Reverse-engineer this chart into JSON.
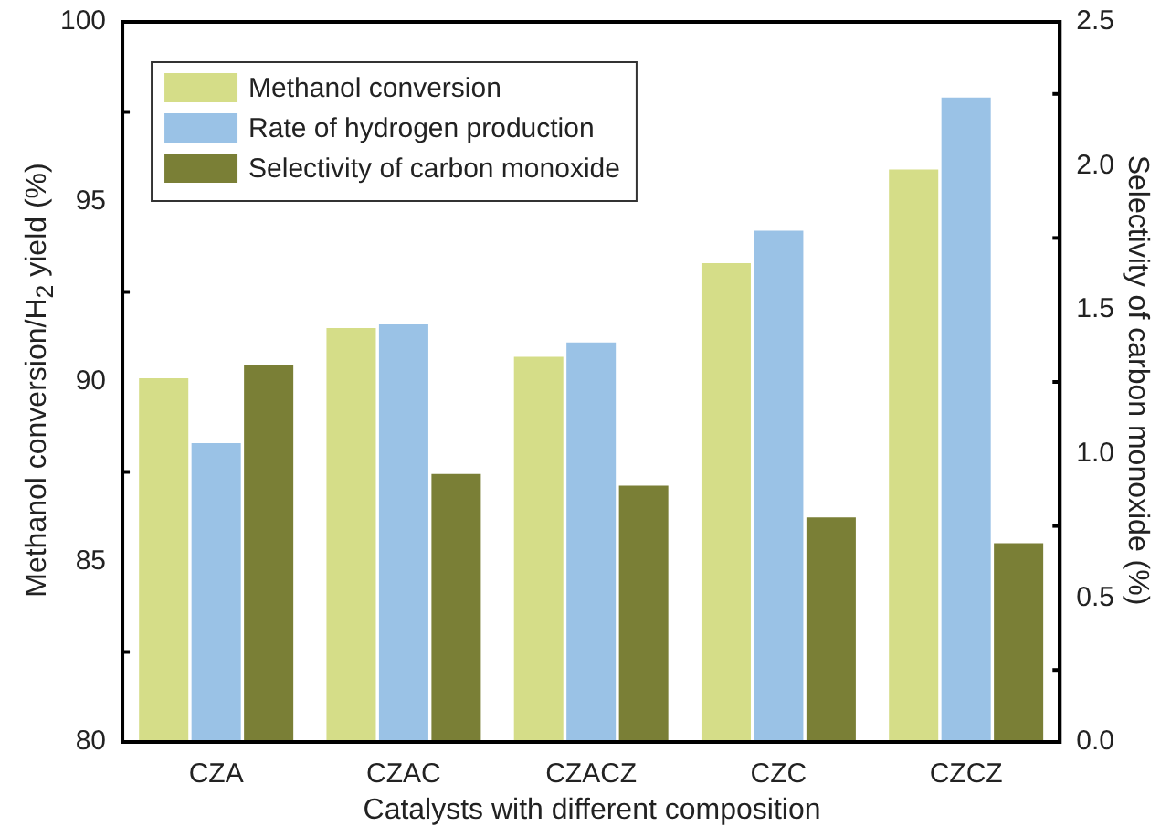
{
  "chart_data": {
    "type": "bar",
    "categories": [
      "CZA",
      "CZAC",
      "CZACZ",
      "CZC",
      "CZCZ"
    ],
    "series": [
      {
        "name": "Methanol conversion",
        "color": "#d5dd88",
        "values": [
          90.1,
          91.5,
          90.7,
          93.3,
          95.9
        ]
      },
      {
        "name": "Rate of hydrogen production",
        "color": "#9ac2e6",
        "values": [
          88.3,
          91.6,
          91.1,
          94.2,
          97.9
        ]
      },
      {
        "name": "Selectivity of carbon monoxide",
        "color": "#7a7f36",
        "axis": "y2",
        "values": [
          1.31,
          0.93,
          0.89,
          0.78,
          0.69
        ]
      }
    ],
    "xlabel": "Catalysts with different composition",
    "ylabel": "Methanol conversion/H$_{2}$ yield (%)",
    "y2label": "Selectivity of carbon monoxide (%)",
    "ylim": [
      80,
      100
    ],
    "yticks": [
      80,
      85,
      90,
      95,
      100
    ],
    "y2lim": [
      0,
      2.5
    ],
    "y2ticks": [
      {
        "value": 0,
        "label": "0.0"
      },
      0.5,
      {
        "value": 1,
        "label": "1.0"
      },
      1.5,
      {
        "value": 2,
        "label": "2.0"
      },
      2.5
    ],
    "legend": "top left",
    "grid": false
  }
}
